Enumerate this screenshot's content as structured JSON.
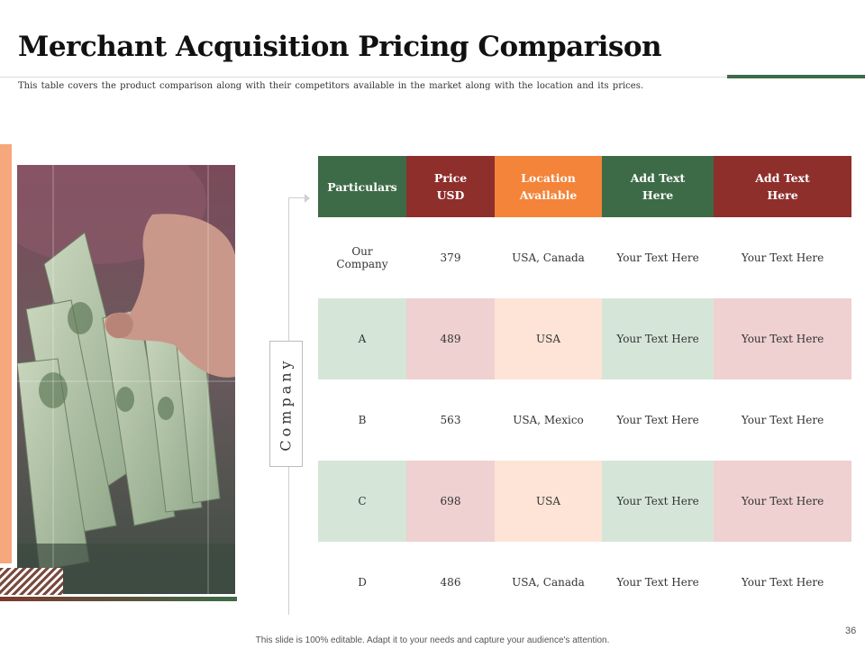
{
  "slide": {
    "title": "Merchant Acquisition Pricing Comparison",
    "subtitle": "This table covers the product comparison along with their competitors available in the market along with the location and its prices.",
    "side_label": "Company",
    "footer": "This slide is 100% editable. Adapt it to your needs and capture your audience's attention.",
    "page_number": "36"
  },
  "colors": {
    "green": "#3e6b47",
    "maroon": "#8e2f2c",
    "orange": "#f38439",
    "peach": "#f6a77c"
  },
  "table": {
    "headers": [
      [
        "Particulars"
      ],
      [
        "Price",
        "USD"
      ],
      [
        "Location",
        "Available"
      ],
      [
        "Add Text",
        "Here"
      ],
      [
        "Add Text",
        "Here"
      ]
    ],
    "rows": [
      [
        [
          "Our",
          "Company"
        ],
        "379",
        "USA, Canada",
        "Your Text Here",
        "Your Text Here"
      ],
      [
        "A",
        "489",
        "USA",
        "Your Text Here",
        "Your Text Here"
      ],
      [
        "B",
        "563",
        "USA, Mexico",
        "Your Text Here",
        "Your Text Here"
      ],
      [
        "C",
        "698",
        "USA",
        "Your Text Here",
        "Your Text Here"
      ],
      [
        "D",
        "486",
        "USA, Canada",
        "Your Text Here",
        "Your Text Here"
      ]
    ]
  },
  "photo": {
    "subject": "hand holding fanned twenty-dollar bills"
  }
}
